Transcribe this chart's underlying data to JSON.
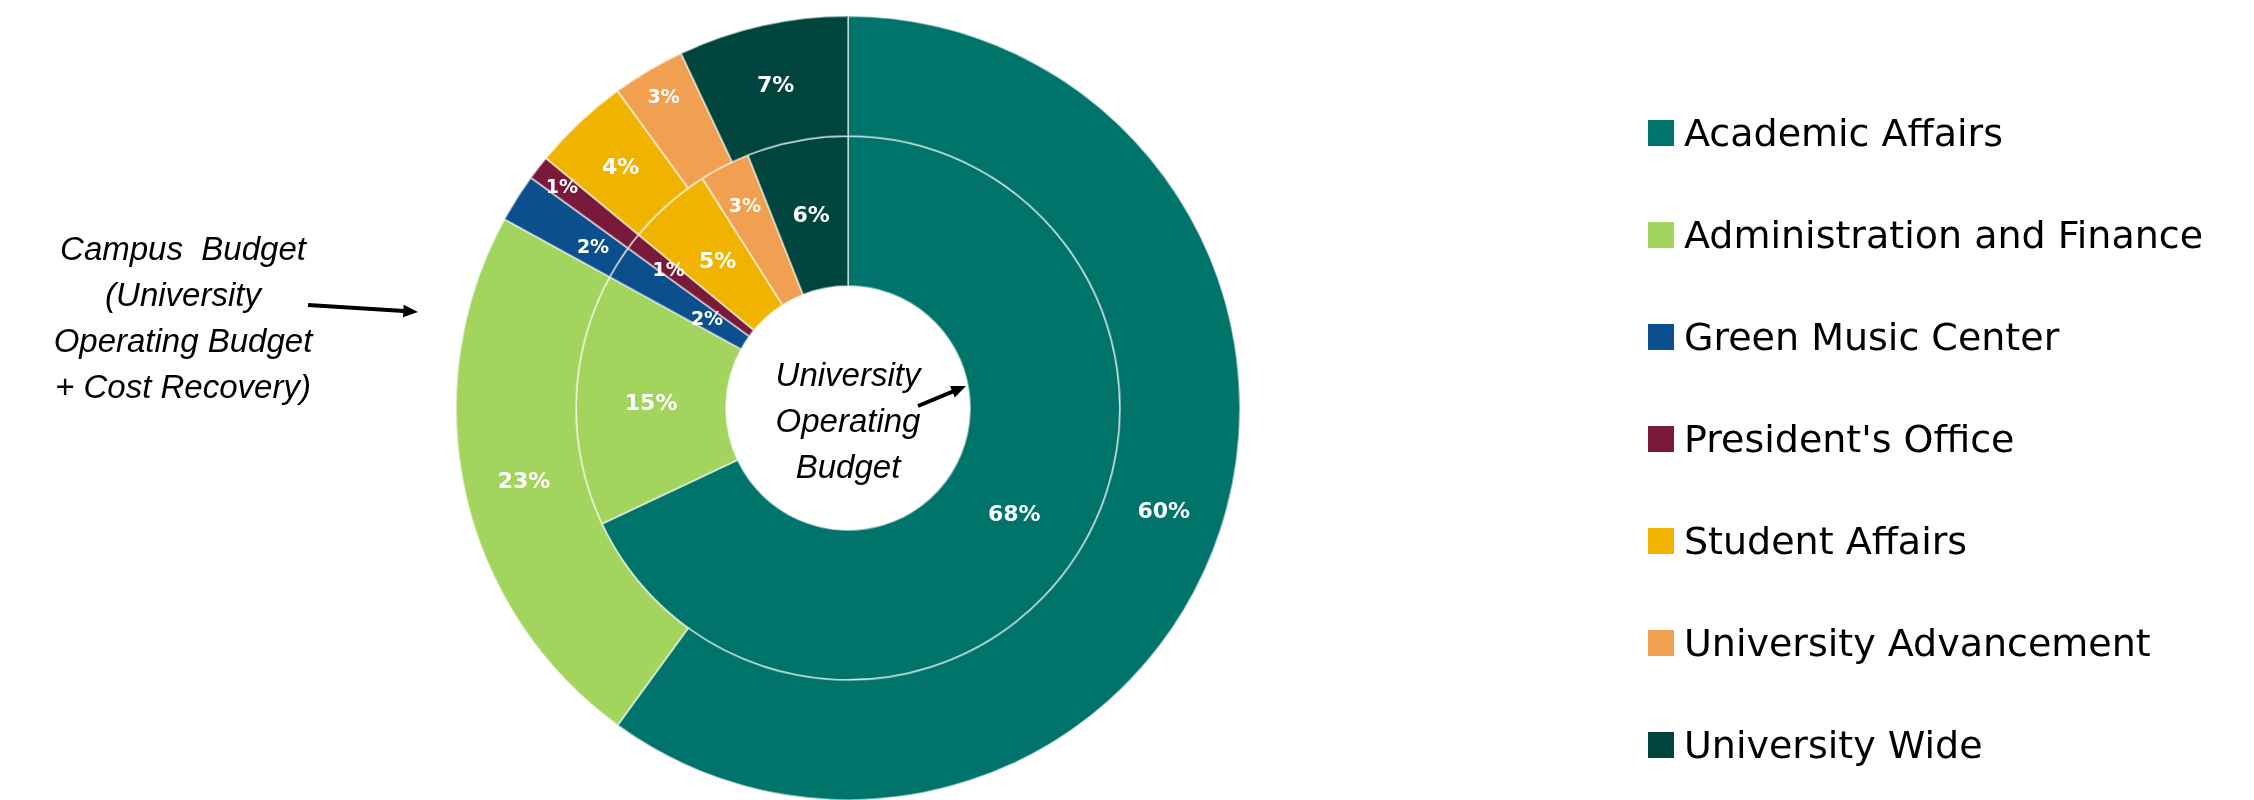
{
  "chart_data": {
    "type": "donut",
    "categories": [
      "Academic Affairs",
      "Administration and Finance",
      "Green Music Center",
      "President's Office",
      "Student Affairs",
      "University Advancement",
      "University Wide"
    ],
    "colors": [
      "#00736b",
      "#a2d45e",
      "#0b4f8c",
      "#7a1a3a",
      "#f0b400",
      "#f0a050",
      "#00453d"
    ],
    "series": [
      {
        "values": [
          68,
          15,
          2,
          1,
          5,
          3,
          6
        ],
        "value_labels": [
          "68%",
          "15%",
          "2%",
          "1%",
          "5%",
          "3%",
          "6%"
        ]
      },
      {
        "values": [
          60,
          23,
          2,
          1,
          4,
          3,
          7
        ],
        "value_labels": [
          "60%",
          "23%",
          "2%",
          "1%",
          "4%",
          "3%",
          "7%"
        ]
      }
    ],
    "legend": "right",
    "annotations": [
      "Campus  Budget (University Operating Budget + Cost Recovery)",
      "University Operating Budget"
    ]
  }
}
